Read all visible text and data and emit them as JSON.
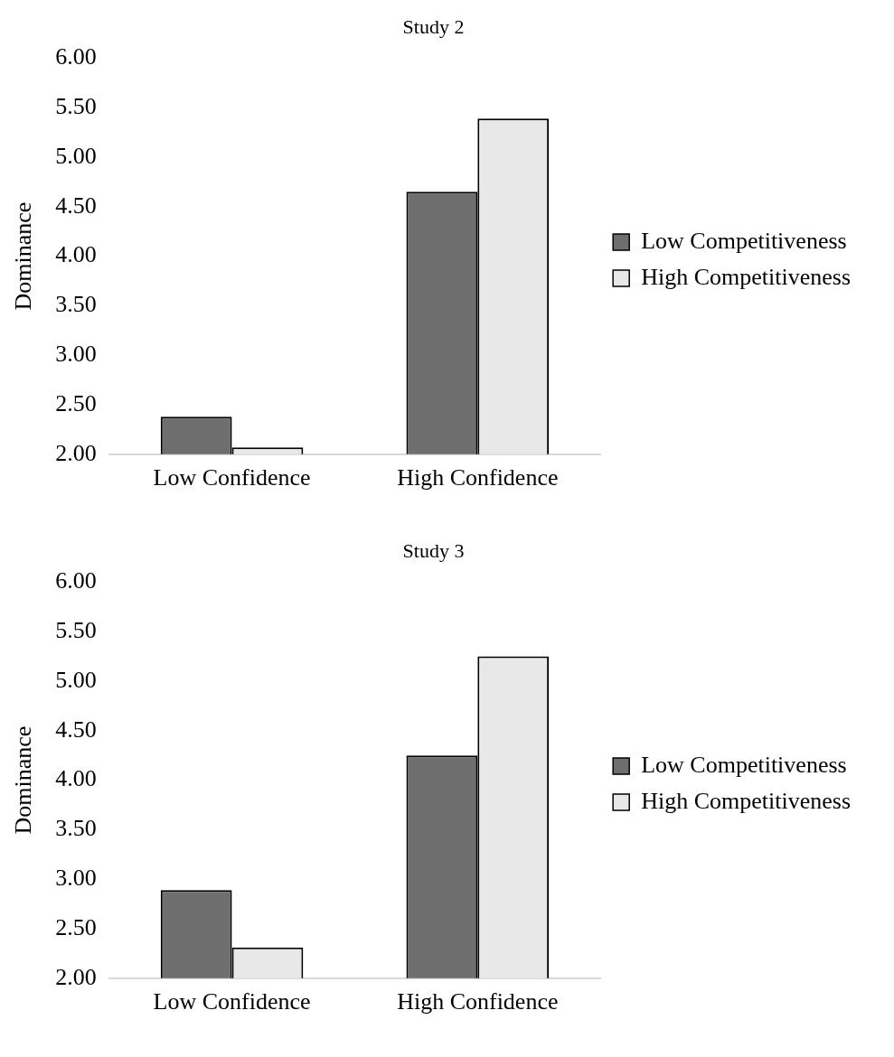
{
  "chart_data": [
    {
      "type": "bar",
      "title": "Study 2",
      "ylabel": "Dominance",
      "categories": [
        "Low Confidence",
        "High Confidence"
      ],
      "series": [
        {
          "name": "Low Competitiveness",
          "color": "#6e6e6e",
          "values": [
            2.38,
            4.65
          ]
        },
        {
          "name": "High Competitiveness",
          "color": "#e8e8e8",
          "values": [
            2.07,
            5.39
          ]
        }
      ],
      "ylim": [
        2,
        6
      ],
      "yticks": [
        {
          "value": 2,
          "label": "2.00"
        },
        {
          "value": 2.5,
          "label": "2.50"
        },
        {
          "value": 3,
          "label": "3.00"
        },
        {
          "value": 3.5,
          "label": "3.50"
        },
        {
          "value": 4,
          "label": "4.00"
        },
        {
          "value": 4.5,
          "label": "4.50"
        },
        {
          "value": 5,
          "label": "5.00"
        },
        {
          "value": 5.5,
          "label": "5.50"
        },
        {
          "value": 6,
          "label": "6.00"
        }
      ],
      "grid": false,
      "legend": "right"
    },
    {
      "type": "bar",
      "title": "Study 3",
      "ylabel": "Dominance",
      "categories": [
        "Low Confidence",
        "High Confidence"
      ],
      "series": [
        {
          "name": "Low Competitiveness",
          "color": "#6e6e6e",
          "values": [
            2.89,
            4.25
          ]
        },
        {
          "name": "High Competitiveness",
          "color": "#e8e8e8",
          "values": [
            2.31,
            5.25
          ]
        }
      ],
      "ylim": [
        2,
        6
      ],
      "yticks": [
        {
          "value": 2,
          "label": "2.00"
        },
        {
          "value": 2.5,
          "label": "2.50"
        },
        {
          "value": 3,
          "label": "3.00"
        },
        {
          "value": 3.5,
          "label": "3.50"
        },
        {
          "value": 4,
          "label": "4.00"
        },
        {
          "value": 4.5,
          "label": "4.50"
        },
        {
          "value": 5,
          "label": "5.00"
        },
        {
          "value": 5.5,
          "label": "5.50"
        },
        {
          "value": 6,
          "label": "6.00"
        }
      ],
      "grid": false,
      "legend": "right"
    }
  ]
}
